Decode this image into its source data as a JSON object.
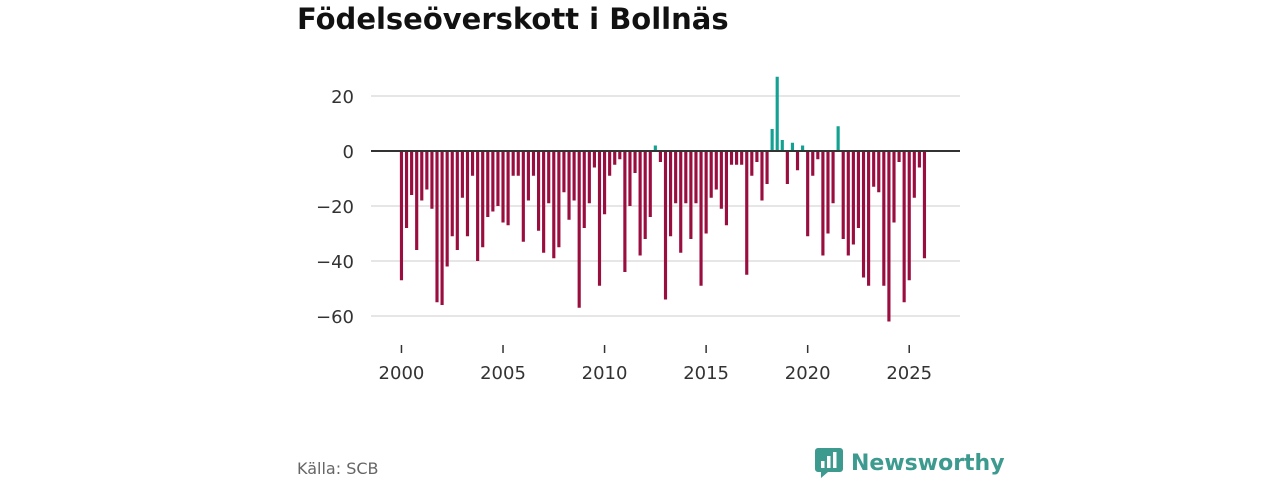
{
  "title": "Födelseöverskott i Bollnäs",
  "source": "Källa: SCB",
  "brand": {
    "name": "Newsworthy"
  },
  "colors": {
    "negative": "#990d3f",
    "positive": "#13a192",
    "grid": "#dddddd",
    "zero": "#333333",
    "axis_text": "#333333"
  },
  "chart_data": {
    "type": "bar",
    "title": "Födelseöverskott i Bollnäs",
    "xlabel": "",
    "ylabel": "",
    "ylim": [
      -68,
      28
    ],
    "xlim": [
      1998.5,
      2027.5
    ],
    "y_ticks": [
      20,
      0,
      -20,
      -40,
      -60
    ],
    "y_tick_labels": [
      "20",
      "0",
      "−20",
      "−40",
      "−60"
    ],
    "x_ticks": [
      2000,
      2005,
      2010,
      2015,
      2020,
      2025
    ],
    "x_tick_labels": [
      "2000",
      "2005",
      "2010",
      "2015",
      "2020",
      "2025"
    ],
    "period_start": 2000.0,
    "period_step": 0.25,
    "values": [
      -47,
      -28,
      -16,
      -36,
      -18,
      -14,
      -21,
      -55,
      -56,
      -42,
      -31,
      -36,
      -17,
      -31,
      -9,
      -40,
      -35,
      -24,
      -22,
      -20,
      -26,
      -27,
      -9,
      -9,
      -33,
      -18,
      -9,
      -29,
      -37,
      -19,
      -39,
      -35,
      -15,
      -25,
      -18,
      -57,
      -28,
      -19,
      -6,
      -49,
      -23,
      -9,
      -5,
      -3,
      -44,
      -20,
      -8,
      -38,
      -32,
      -24,
      2,
      -4,
      -54,
      -31,
      -19,
      -37,
      -19,
      -32,
      -19,
      -49,
      -30,
      -17,
      -14,
      -21,
      -27,
      -5,
      -5,
      -5,
      -45,
      -9,
      -4,
      -18,
      -12,
      8,
      27,
      4,
      -12,
      3,
      -7,
      2,
      -31,
      -9,
      -3,
      -38,
      -30,
      -19,
      9,
      -32,
      -38,
      -34,
      -28,
      -46,
      -49,
      -13,
      -15,
      -49,
      -62,
      -26,
      -4,
      -55,
      -47,
      -17,
      -6,
      -39
    ]
  }
}
